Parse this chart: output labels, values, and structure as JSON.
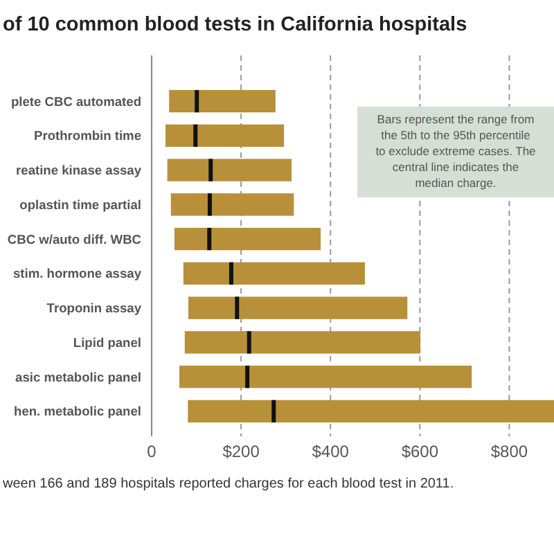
{
  "chart_data": {
    "type": "box",
    "title": "of 10 common blood tests in California hospitals",
    "orientation": "horizontal",
    "categories": [
      "plete CBC automated",
      "Prothrombin time",
      "reatine kinase assay",
      "oplastin time partial",
      "CBC w/auto diff. WBC",
      "stim. hormone assay",
      "Troponin assay",
      "Lipid panel",
      "asic metabolic panel",
      "hen. metabolic panel"
    ],
    "color": "#b8903a",
    "boxes": [
      {
        "low": 39,
        "q1": 39,
        "median": 101,
        "q3": 277,
        "high": 277
      },
      {
        "low": 31,
        "q1": 31,
        "median": 98,
        "q3": 296,
        "high": 296
      },
      {
        "low": 35,
        "q1": 35,
        "median": 132,
        "q3": 313,
        "high": 313
      },
      {
        "low": 43,
        "q1": 43,
        "median": 130,
        "q3": 318,
        "high": 318
      },
      {
        "low": 51,
        "q1": 51,
        "median": 129,
        "q3": 378,
        "high": 378
      },
      {
        "low": 71,
        "q1": 71,
        "median": 178,
        "q3": 477,
        "high": 477
      },
      {
        "low": 82,
        "q1": 82,
        "median": 191,
        "q3": 572,
        "high": 572
      },
      {
        "low": 74,
        "q1": 74,
        "median": 218,
        "q3": 601,
        "high": 601
      },
      {
        "low": 62,
        "q1": 62,
        "median": 214,
        "q3": 716,
        "high": 716
      },
      {
        "low": 81,
        "q1": 81,
        "median": 273,
        "q3": 900,
        "high": 900
      }
    ],
    "xlim": [
      0,
      900
    ],
    "xticks": [
      {
        "value": 0,
        "label": "0"
      },
      {
        "value": 200,
        "label": "$200"
      },
      {
        "value": 400,
        "label": "$400"
      },
      {
        "value": 600,
        "label": "$600"
      },
      {
        "value": 800,
        "label": "$800"
      }
    ],
    "grid": "x",
    "annotations": [
      "Bars represent the range from the 5th to the 95th percentile to exclude extreme cases. The central line indicates the median charge.",
      "ween 166 and 189 hospitals reported charges for each blood test in 2011."
    ]
  }
}
